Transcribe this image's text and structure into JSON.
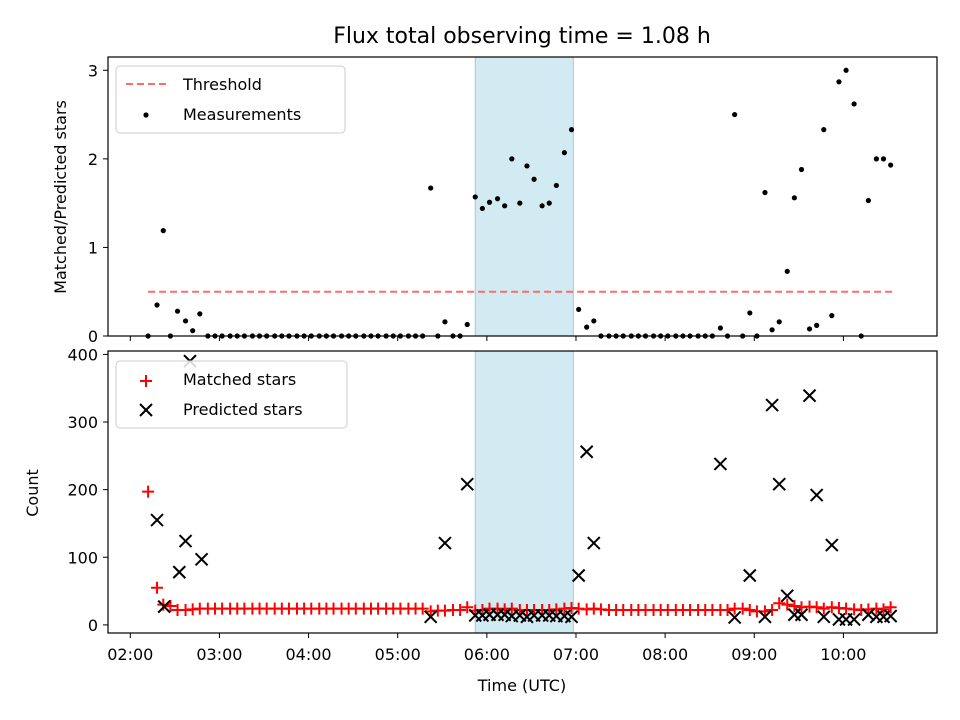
{
  "chart_data": [
    {
      "type": "scatter",
      "title": "Flux total observing time = 1.08 h",
      "ylabel": "Matched/Predicted stars",
      "xlabel": "",
      "ylim": [
        0,
        3.15
      ],
      "xlim_hours": [
        1.75,
        11.05
      ],
      "yticks": [
        0,
        1,
        2,
        3
      ],
      "ytick_labels": [
        "0",
        "1",
        "2",
        "3"
      ],
      "shaded_region_hours": [
        5.87,
        6.97
      ],
      "shaded_color": "#add8e6",
      "threshold": {
        "name": "Threshold",
        "value": 0.5,
        "x_start": 2.2,
        "x_end": 10.55,
        "color": "#ff6b6b"
      },
      "series": [
        {
          "name": "Measurements",
          "color": "#000000",
          "x": [
            2.2,
            2.3,
            2.37,
            2.45,
            2.53,
            2.62,
            2.7,
            2.78,
            2.87,
            2.95,
            3.03,
            3.12,
            3.2,
            3.28,
            3.37,
            3.45,
            3.53,
            3.62,
            3.7,
            3.78,
            3.87,
            3.95,
            4.03,
            4.12,
            4.2,
            4.28,
            4.37,
            4.45,
            4.53,
            4.62,
            4.7,
            4.78,
            4.87,
            4.95,
            5.03,
            5.12,
            5.2,
            5.28,
            5.37,
            5.45,
            5.53,
            5.62,
            5.7,
            5.78,
            5.87,
            5.95,
            6.03,
            6.12,
            6.2,
            6.28,
            6.37,
            6.45,
            6.53,
            6.62,
            6.7,
            6.78,
            6.87,
            6.95,
            7.03,
            7.12,
            7.2,
            7.28,
            7.37,
            7.45,
            7.53,
            7.62,
            7.7,
            7.78,
            7.87,
            7.95,
            8.03,
            8.12,
            8.2,
            8.28,
            8.37,
            8.45,
            8.53,
            8.62,
            8.7,
            8.78,
            8.87,
            8.95,
            9.03,
            9.12,
            9.2,
            9.28,
            9.37,
            9.45,
            9.53,
            9.62,
            9.7,
            9.78,
            9.87,
            9.95,
            10.03,
            10.12,
            10.2,
            10.28,
            10.37,
            10.45,
            10.53
          ],
          "y": [
            0.0,
            0.35,
            1.19,
            0.0,
            0.28,
            0.17,
            0.06,
            0.25,
            0.0,
            0.0,
            0.0,
            0.0,
            0.0,
            0.0,
            0.0,
            0.0,
            0.0,
            0.0,
            0.0,
            0.0,
            0.0,
            0.0,
            0.0,
            0.0,
            0.0,
            0.0,
            0.0,
            0.0,
            0.0,
            0.0,
            0.0,
            0.0,
            0.0,
            0.0,
            0.0,
            0.0,
            0.0,
            0.0,
            1.67,
            0.0,
            0.16,
            0.0,
            0.0,
            0.13,
            1.57,
            1.44,
            1.51,
            1.55,
            1.47,
            2.0,
            1.5,
            1.92,
            1.77,
            1.47,
            1.5,
            1.7,
            2.07,
            2.33,
            0.3,
            0.1,
            0.17,
            0.0,
            0.0,
            0.0,
            0.0,
            0.0,
            0.0,
            0.0,
            0.0,
            0.0,
            0.0,
            0.0,
            0.0,
            0.0,
            0.0,
            0.0,
            0.0,
            0.09,
            0.0,
            2.5,
            0.0,
            0.26,
            0.0,
            1.62,
            0.07,
            0.16,
            0.73,
            1.56,
            1.88,
            0.08,
            0.12,
            2.33,
            0.23,
            2.87,
            3.0,
            2.62,
            0.0,
            1.53,
            2.0,
            2.0,
            1.93
          ]
        }
      ]
    },
    {
      "type": "scatter",
      "title": "",
      "ylabel": "Count",
      "xlabel": "Time (UTC)",
      "ylim": [
        -12,
        405
      ],
      "xlim_hours": [
        1.75,
        11.05
      ],
      "yticks": [
        0,
        100,
        200,
        300,
        400
      ],
      "ytick_labels": [
        "0",
        "100",
        "200",
        "300",
        "400"
      ],
      "xticks_hours": [
        2,
        3,
        4,
        5,
        6,
        7,
        8,
        9,
        10
      ],
      "xtick_labels": [
        "02:00",
        "03:00",
        "04:00",
        "05:00",
        "06:00",
        "07:00",
        "08:00",
        "09:00",
        "10:00"
      ],
      "shaded_region_hours": [
        5.87,
        6.97
      ],
      "shaded_color": "#add8e6",
      "series": [
        {
          "name": "Matched stars",
          "marker": "plus",
          "color": "#ff0000",
          "x": [
            2.2,
            2.3,
            2.37,
            2.45,
            2.53,
            2.62,
            2.7,
            2.78,
            2.87,
            2.95,
            3.03,
            3.12,
            3.2,
            3.28,
            3.37,
            3.45,
            3.53,
            3.62,
            3.7,
            3.78,
            3.87,
            3.95,
            4.03,
            4.12,
            4.2,
            4.28,
            4.37,
            4.45,
            4.53,
            4.62,
            4.7,
            4.78,
            4.87,
            4.95,
            5.03,
            5.12,
            5.2,
            5.28,
            5.37,
            5.45,
            5.53,
            5.62,
            5.7,
            5.78,
            5.87,
            5.95,
            6.03,
            6.12,
            6.2,
            6.28,
            6.37,
            6.45,
            6.53,
            6.62,
            6.7,
            6.78,
            6.87,
            6.95,
            7.03,
            7.12,
            7.2,
            7.28,
            7.37,
            7.45,
            7.53,
            7.62,
            7.7,
            7.78,
            7.87,
            7.95,
            8.03,
            8.12,
            8.2,
            8.28,
            8.37,
            8.45,
            8.53,
            8.62,
            8.7,
            8.78,
            8.87,
            8.95,
            9.03,
            9.12,
            9.2,
            9.28,
            9.37,
            9.45,
            9.53,
            9.62,
            9.7,
            9.78,
            9.87,
            9.95,
            10.03,
            10.12,
            10.2,
            10.28,
            10.37,
            10.45,
            10.53
          ],
          "y": [
            197,
            55,
            30,
            28,
            22,
            22,
            23,
            24,
            24,
            24,
            24,
            24,
            24,
            24,
            24,
            24,
            24,
            24,
            24,
            24,
            24,
            24,
            24,
            24,
            24,
            24,
            24,
            24,
            24,
            24,
            24,
            24,
            24,
            24,
            24,
            24,
            24,
            24,
            20,
            21,
            21,
            22,
            22,
            26,
            21,
            22,
            24,
            24,
            23,
            24,
            22,
            22,
            22,
            22,
            22,
            23,
            24,
            25,
            24,
            23,
            24,
            23,
            22,
            22,
            22,
            22,
            22,
            22,
            22,
            22,
            22,
            22,
            22,
            22,
            22,
            22,
            22,
            22,
            22,
            24,
            24,
            22,
            20,
            20,
            22,
            32,
            30,
            28,
            26,
            27,
            26,
            24,
            26,
            25,
            24,
            23,
            22,
            23,
            24,
            23,
            26
          ]
        },
        {
          "name": "Predicted stars",
          "marker": "x",
          "color": "#000000",
          "x": [
            2.3,
            2.38,
            2.55,
            2.62,
            2.67,
            2.8,
            5.37,
            5.53,
            5.78,
            5.87,
            5.95,
            6.03,
            6.12,
            6.2,
            6.28,
            6.37,
            6.45,
            6.53,
            6.62,
            6.7,
            6.78,
            6.87,
            6.95,
            7.03,
            7.12,
            7.2,
            8.62,
            8.78,
            8.95,
            9.12,
            9.2,
            9.28,
            9.37,
            9.45,
            9.53,
            9.62,
            9.7,
            9.78,
            9.87,
            9.95,
            10.03,
            10.12,
            10.28,
            10.37,
            10.45,
            10.53
          ],
          "y": [
            155,
            27,
            78,
            124,
            390,
            97,
            12,
            121,
            208,
            14,
            14,
            15,
            15,
            15,
            13,
            14,
            12,
            14,
            14,
            14,
            13,
            13,
            12,
            73,
            256,
            121,
            238,
            11,
            73,
            12,
            325,
            208,
            43,
            15,
            15,
            339,
            192,
            12,
            118,
            8,
            8,
            8,
            15,
            12,
            12,
            13
          ]
        }
      ]
    }
  ]
}
